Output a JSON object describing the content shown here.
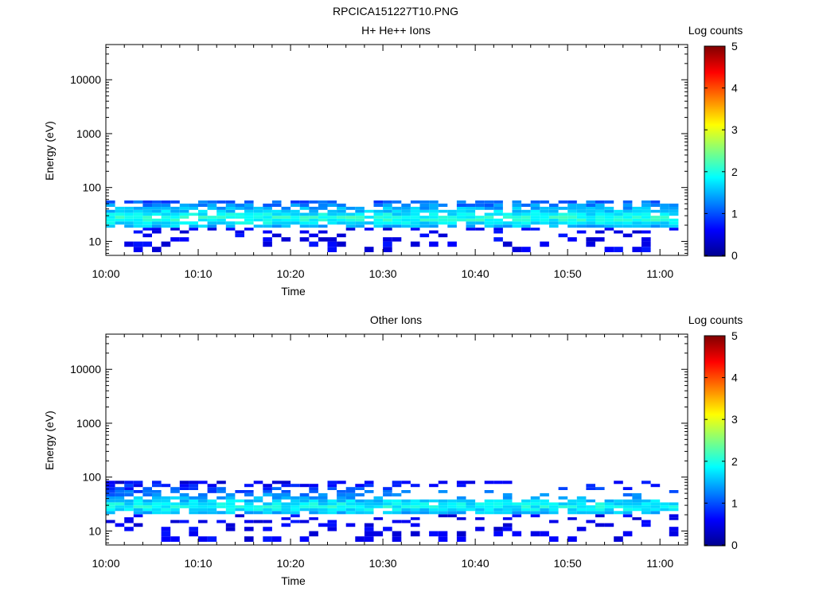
{
  "figure": {
    "title": "RPCICA151227T10.PNG"
  },
  "colorbar": {
    "label": "Log counts",
    "ticks": [
      "0",
      "1",
      "2",
      "3",
      "4",
      "5"
    ],
    "range": [
      0,
      5
    ]
  },
  "chart_data": [
    {
      "type": "heatmap",
      "title": "H+ He++ Ions",
      "xlabel": "Time",
      "ylabel": "Energy (eV)",
      "x_ticks": [
        "10:00",
        "10:10",
        "10:20",
        "10:30",
        "10:40",
        "10:50",
        "11:00"
      ],
      "x_range_minutes": [
        0,
        63
      ],
      "y_scale": "log",
      "y_ticks": [
        "10",
        "100",
        "1000",
        "10000"
      ],
      "ylim": [
        5.5,
        45000
      ],
      "z_label": "Log counts",
      "z_range": [
        0,
        5
      ],
      "time_bin_minutes": 1,
      "energy_bins_eV": [
        7,
        9,
        11,
        13,
        15,
        17,
        19,
        22,
        25,
        28,
        32,
        36,
        41,
        47,
        54,
        61,
        70,
        80
      ],
      "profile": {
        "peak_energy_eV": 27,
        "peak_log_counts": 2.3,
        "band_low_eV": 19,
        "band_high_eV": 55,
        "upper_edge_eV": 90,
        "lower_sparse_eV": 6
      }
    },
    {
      "type": "heatmap",
      "title": "Other Ions",
      "xlabel": "Time",
      "ylabel": "Energy (eV)",
      "x_ticks": [
        "10:00",
        "10:10",
        "10:20",
        "10:30",
        "10:40",
        "10:50",
        "11:00"
      ],
      "x_range_minutes": [
        0,
        63
      ],
      "y_scale": "log",
      "y_ticks": [
        "10",
        "100",
        "1000",
        "10000"
      ],
      "ylim": [
        5.5,
        45000
      ],
      "z_label": "Log counts",
      "z_range": [
        0,
        5
      ],
      "time_bin_minutes": 1,
      "energy_bins_eV": [
        7,
        9,
        11,
        13,
        15,
        17,
        19,
        22,
        25,
        28,
        32,
        36,
        41,
        47,
        54,
        61,
        70,
        80
      ],
      "profile": {
        "peak_energy_eV": 29,
        "peak_log_counts": 2.2,
        "band_low_eV": 22,
        "band_high_eV": 90,
        "dense_until_minute": 31,
        "upper_edge_eV": 90,
        "lower_sparse_eV": 7
      }
    }
  ]
}
